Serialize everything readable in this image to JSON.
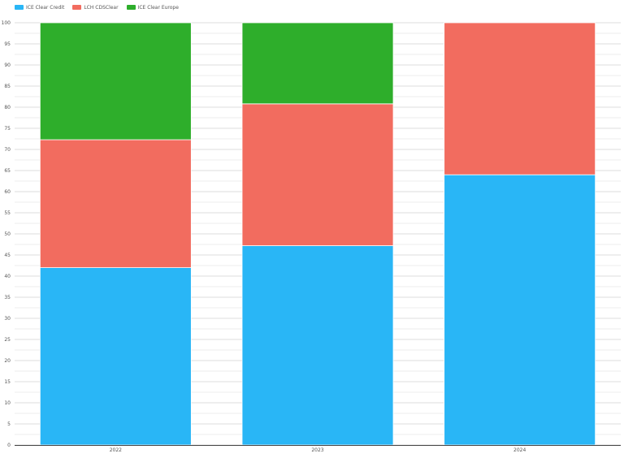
{
  "chart_data": {
    "type": "bar",
    "stacked": true,
    "categories": [
      "2022",
      "2023",
      "2024"
    ],
    "series": [
      {
        "name": "ICE Clear Credit",
        "color": "#29b6f6",
        "values": [
          42,
          47.2,
          64
        ]
      },
      {
        "name": "LCH CDSClear",
        "color": "#f26c5f",
        "values": [
          30.3,
          33.6,
          36
        ]
      },
      {
        "name": "ICE Clear Europe",
        "color": "#2eae2b",
        "values": [
          27.7,
          19.2,
          0
        ]
      }
    ],
    "y_ticks": [
      "0",
      "5",
      "10",
      "15",
      "20",
      "25",
      "30",
      "35",
      "40",
      "45",
      "50",
      "55",
      "60",
      "65",
      "70",
      "75",
      "80",
      "85",
      "90",
      "95",
      "100"
    ],
    "ylim": [
      0,
      100
    ],
    "title": "",
    "xlabel": "",
    "ylabel": "",
    "grid": true,
    "legend_position": "top-left"
  }
}
